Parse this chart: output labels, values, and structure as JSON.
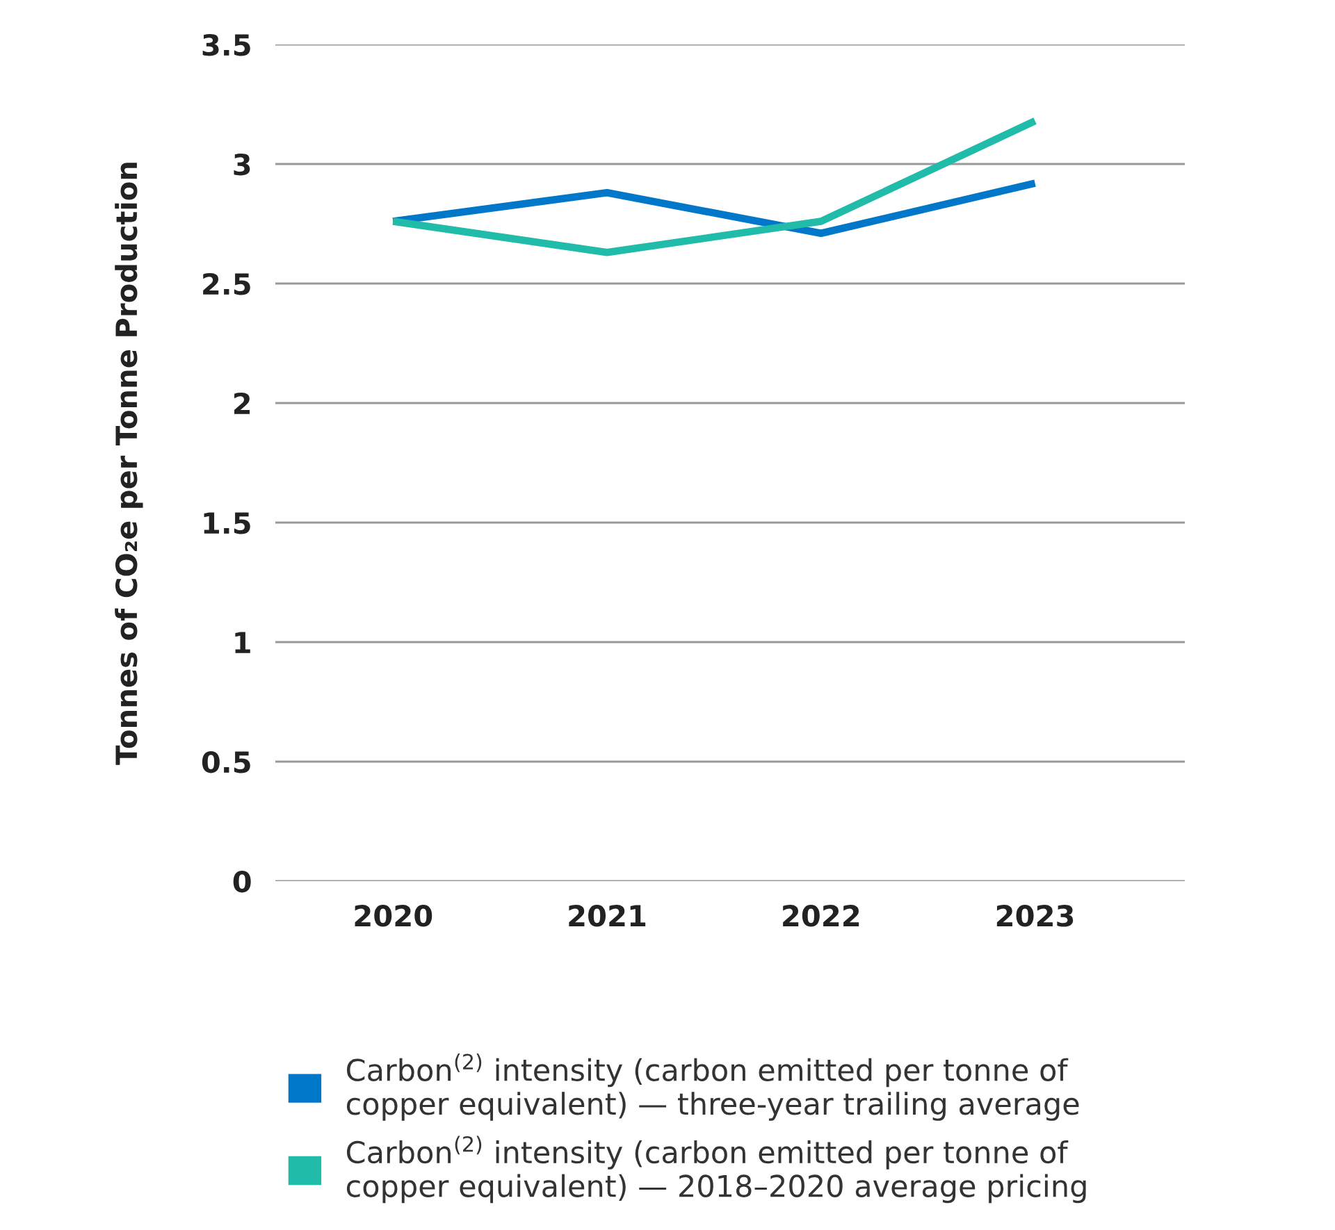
{
  "chart_data": {
    "type": "line",
    "ylabel": "Tonnes of CO₂e per Tonne Production",
    "categories": [
      "2020",
      "2021",
      "2022",
      "2023"
    ],
    "series": [
      {
        "name": "Carbon$^{(2)}$ intensity (carbon emitted per tonne of\ncopper equivalent) — three-year trailing average",
        "color": "#0077c8",
        "values": [
          2.76,
          2.88,
          2.71,
          2.92
        ]
      },
      {
        "name": "Carbon$^{(2)}$ intensity (carbon emitted per tonne of\ncopper equivalent) — 2018–2020 average pricing",
        "color": "#20bba9",
        "values": [
          2.76,
          2.63,
          2.76,
          3.18
        ]
      }
    ],
    "ylim": [
      0,
      3.5
    ],
    "yticks": [
      0,
      0.5,
      1,
      1.5,
      2,
      2.5,
      3,
      3.5
    ],
    "grid": "y",
    "legend": "bottom",
    "marker": "none",
    "line_style": "solid"
  }
}
